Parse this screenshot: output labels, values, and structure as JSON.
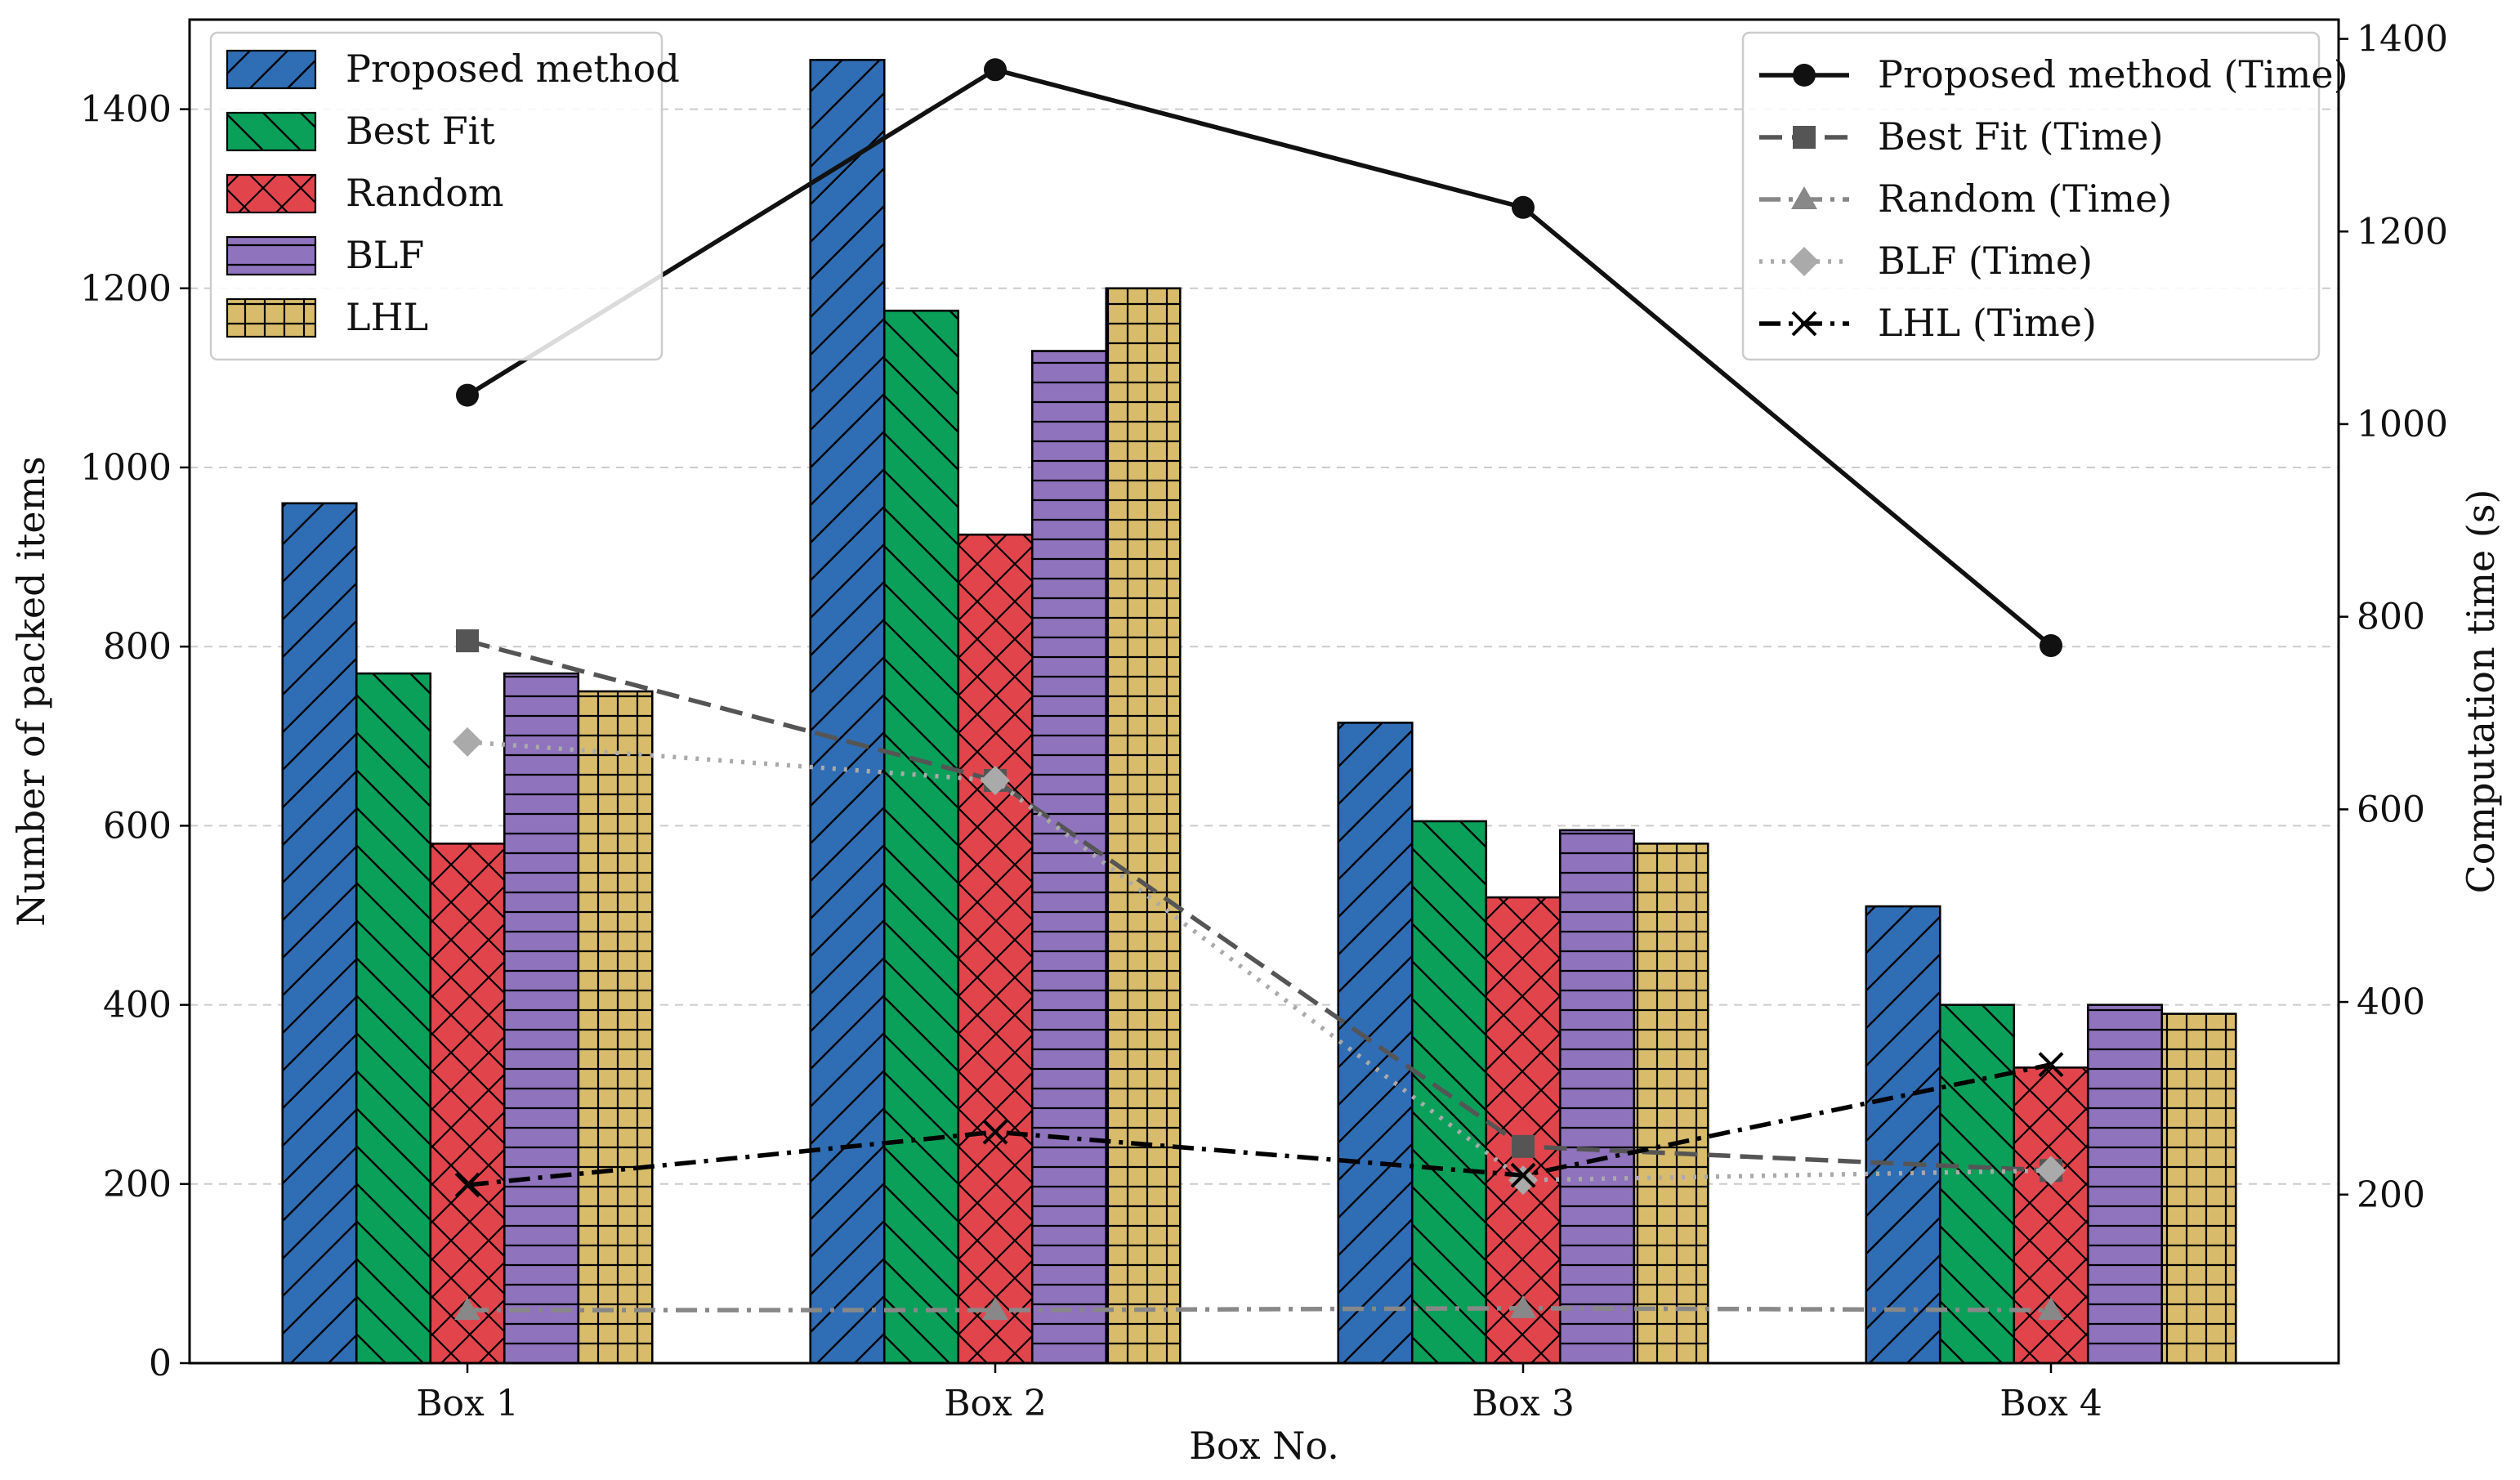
{
  "chart_data": {
    "type": "bar+line",
    "title": "",
    "xlabel": "Box No.",
    "ylabel": "Number of packed items",
    "y2label": "Computation time (s)",
    "categories": [
      "Box 1",
      "Box 2",
      "Box 3",
      "Box 4"
    ],
    "ylim": [
      0,
      1500
    ],
    "yticks": [
      0,
      200,
      400,
      600,
      800,
      1000,
      1200,
      1400
    ],
    "y2lim": [
      25,
      1420
    ],
    "y2ticks": [
      200,
      400,
      600,
      800,
      1000,
      1200,
      1400
    ],
    "grid": "horizontal-dashed",
    "bar_series": [
      {
        "name": "Proposed method",
        "values": [
          960,
          1455,
          715,
          510
        ],
        "color": "#2f6db5",
        "hatch": "diag-up"
      },
      {
        "name": "Best Fit",
        "values": [
          770,
          1175,
          605,
          400
        ],
        "color": "#0aa05a",
        "hatch": "diag-down"
      },
      {
        "name": "Random",
        "values": [
          580,
          925,
          520,
          330
        ],
        "color": "#e2444c",
        "hatch": "cross"
      },
      {
        "name": "BLF",
        "values": [
          770,
          1130,
          595,
          400
        ],
        "color": "#8f73bd",
        "hatch": "horizontal"
      },
      {
        "name": "LHL",
        "values": [
          750,
          1200,
          580,
          390
        ],
        "color": "#d8bc6c",
        "hatch": "grid"
      }
    ],
    "line_series": [
      {
        "name": "Proposed method (Time)",
        "values": [
          1030,
          1368,
          1225,
          770
        ],
        "color": "#111111",
        "dash": "solid",
        "marker": "circle"
      },
      {
        "name": "Best Fit (Time)",
        "values": [
          775,
          630,
          250,
          225
        ],
        "color": "#555555",
        "dash": "dashed",
        "marker": "square"
      },
      {
        "name": "Random (Time)",
        "values": [
          80,
          80,
          82,
          80
        ],
        "color": "#888888",
        "dash": "dashdot",
        "marker": "triangle"
      },
      {
        "name": "BLF (Time)",
        "values": [
          670,
          630,
          215,
          225
        ],
        "color": "#aaaaaa",
        "dash": "dotted",
        "marker": "diamond"
      },
      {
        "name": "LHL (Time)",
        "values": [
          210,
          265,
          220,
          335
        ],
        "color": "#000000",
        "dash": "dashdot",
        "marker": "x"
      }
    ],
    "legend_left_position": "top-left",
    "legend_right_position": "top-right"
  }
}
